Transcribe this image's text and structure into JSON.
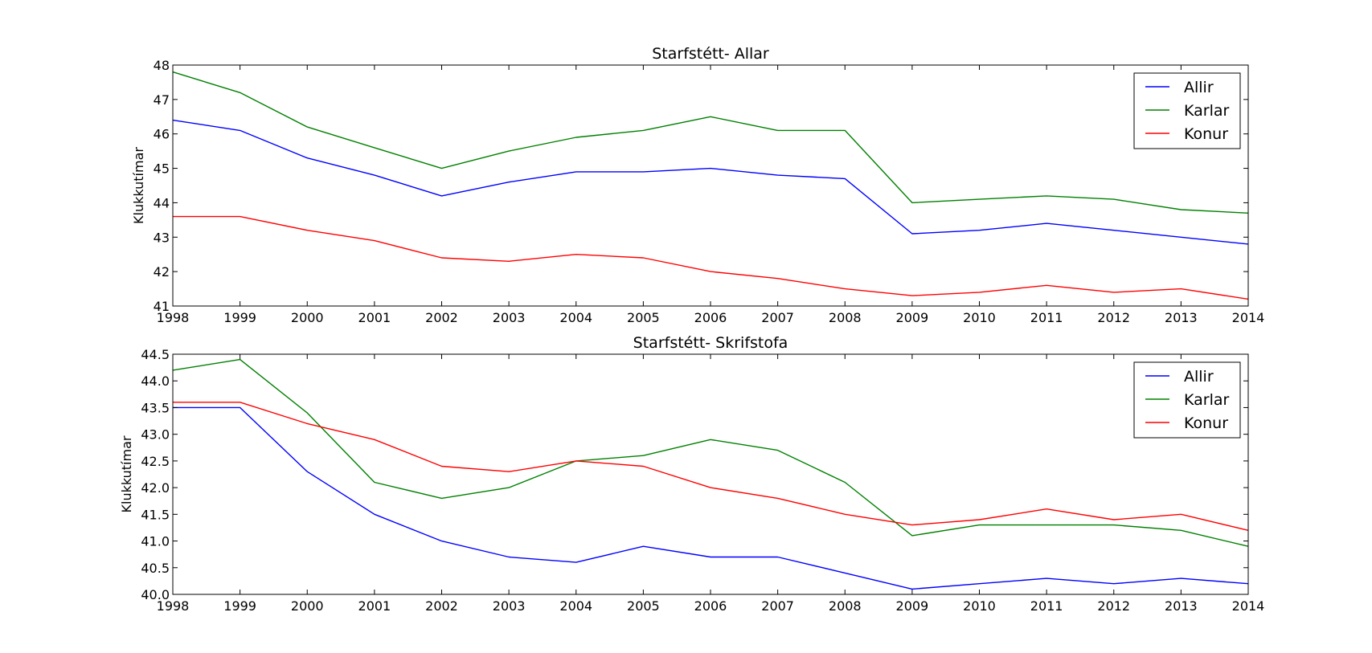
{
  "chart_data": [
    {
      "type": "line",
      "title": "Starfstétt- Allar",
      "ylabel": "Klukkutímar",
      "xlabel": "",
      "x": [
        1998,
        1999,
        2000,
        2001,
        2002,
        2003,
        2004,
        2005,
        2006,
        2007,
        2008,
        2009,
        2010,
        2011,
        2012,
        2013,
        2014
      ],
      "xlim": [
        1998,
        2014
      ],
      "ylim": [
        41,
        48
      ],
      "yticks": [
        41,
        42,
        43,
        44,
        45,
        46,
        47,
        48
      ],
      "ytick_decimals": 0,
      "grid": false,
      "legend_position": "top-right",
      "series": [
        {
          "name": "Allir",
          "color": "#0000ff",
          "values": [
            46.4,
            46.1,
            45.3,
            44.8,
            44.2,
            44.6,
            44.9,
            44.9,
            45.0,
            44.8,
            44.7,
            43.1,
            43.2,
            43.4,
            43.2,
            43.0,
            42.8
          ]
        },
        {
          "name": "Karlar",
          "color": "#008000",
          "values": [
            47.8,
            47.2,
            46.2,
            45.6,
            45.0,
            45.5,
            45.9,
            46.1,
            46.5,
            46.1,
            46.1,
            44.0,
            44.1,
            44.2,
            44.1,
            43.8,
            43.7
          ]
        },
        {
          "name": "Konur",
          "color": "#ff0000",
          "values": [
            43.6,
            43.6,
            43.2,
            42.9,
            42.4,
            42.3,
            42.5,
            42.4,
            42.0,
            41.8,
            41.5,
            41.3,
            41.4,
            41.6,
            41.4,
            41.5,
            41.2
          ]
        }
      ]
    },
    {
      "type": "line",
      "title": "Starfstétt- Skrifstofa",
      "ylabel": "Klukkutímar",
      "xlabel": "",
      "x": [
        1998,
        1999,
        2000,
        2001,
        2002,
        2003,
        2004,
        2005,
        2006,
        2007,
        2008,
        2009,
        2010,
        2011,
        2012,
        2013,
        2014
      ],
      "xlim": [
        1998,
        2014
      ],
      "ylim": [
        40.0,
        44.5
      ],
      "yticks": [
        40.0,
        40.5,
        41.0,
        41.5,
        42.0,
        42.5,
        43.0,
        43.5,
        44.0,
        44.5
      ],
      "ytick_decimals": 1,
      "grid": false,
      "legend_position": "top-right",
      "series": [
        {
          "name": "Allir",
          "color": "#0000ff",
          "values": [
            43.5,
            43.5,
            42.3,
            41.5,
            41.0,
            40.7,
            40.6,
            40.9,
            40.7,
            40.7,
            40.4,
            40.1,
            40.2,
            40.3,
            40.2,
            40.3,
            40.2
          ]
        },
        {
          "name": "Karlar",
          "color": "#008000",
          "values": [
            44.2,
            44.4,
            43.4,
            42.1,
            41.8,
            42.0,
            42.5,
            42.6,
            42.9,
            42.7,
            42.1,
            41.1,
            41.3,
            41.3,
            41.3,
            41.2,
            40.9
          ]
        },
        {
          "name": "Konur",
          "color": "#ff0000",
          "values": [
            43.6,
            43.6,
            43.2,
            42.9,
            42.4,
            42.3,
            42.5,
            42.4,
            42.0,
            41.8,
            41.5,
            41.3,
            41.4,
            41.6,
            41.4,
            41.5,
            41.2
          ]
        }
      ]
    }
  ]
}
